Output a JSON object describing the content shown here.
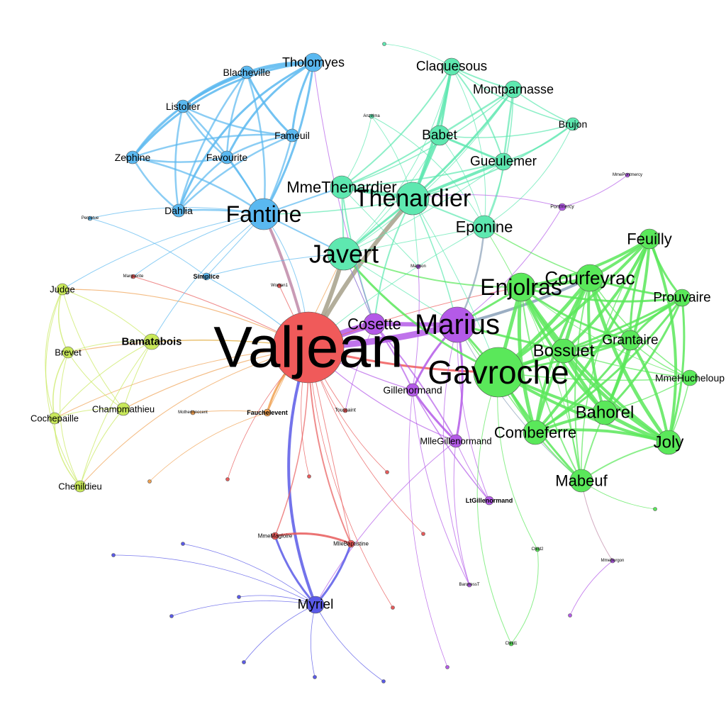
{
  "colors": {
    "valjean": "#f05a5a",
    "thenardier": "#5ee8b0",
    "fantine": "#5ab8f0",
    "marius": "#b45ae8",
    "gavroche": "#5ae85a",
    "myriel": "#5a5ae8",
    "courtroom": "#c8e85a",
    "fauchelevent": "#f0a050",
    "minor_red": "#e85a5a"
  },
  "nodes": [
    {
      "id": "valjean",
      "label": "Valjean",
      "group": "valjean"
    },
    {
      "id": "gavroche",
      "label": "Gavroche",
      "group": "gavroche"
    },
    {
      "id": "marius",
      "label": "Marius",
      "group": "marius"
    },
    {
      "id": "javert",
      "label": "Javert",
      "group": "thenardier"
    },
    {
      "id": "thenardier",
      "label": "Thenardier",
      "group": "thenardier"
    },
    {
      "id": "fantine",
      "label": "Fantine",
      "group": "fantine"
    },
    {
      "id": "enjolras",
      "label": "Enjolras",
      "group": "gavroche"
    },
    {
      "id": "courfeyrac",
      "label": "Courfeyrac",
      "group": "gavroche"
    },
    {
      "id": "bossuet",
      "label": "Bossuet",
      "group": "gavroche"
    },
    {
      "id": "bahorel",
      "label": "Bahorel",
      "group": "gavroche"
    },
    {
      "id": "joly",
      "label": "Joly",
      "group": "gavroche"
    },
    {
      "id": "combeferre",
      "label": "Combeferre",
      "group": "gavroche"
    },
    {
      "id": "mabeuf",
      "label": "Mabeuf",
      "group": "gavroche"
    },
    {
      "id": "feuilly",
      "label": "Feuilly",
      "group": "gavroche"
    },
    {
      "id": "prouvaire",
      "label": "Prouvaire",
      "group": "gavroche"
    },
    {
      "id": "grantaire",
      "label": "Grantaire",
      "group": "gavroche"
    },
    {
      "id": "mmehucheloup",
      "label": "MmeHucheloup",
      "group": "gavroche"
    },
    {
      "id": "cosette",
      "label": "Cosette",
      "group": "marius"
    },
    {
      "id": "eponine",
      "label": "Eponine",
      "group": "thenardier"
    },
    {
      "id": "mmethenardier",
      "label": "MmeThenardier",
      "group": "thenardier"
    },
    {
      "id": "tholomyes",
      "label": "Tholomyes",
      "group": "fantine"
    },
    {
      "id": "claquesous",
      "label": "Claquesous",
      "group": "thenardier"
    },
    {
      "id": "montparnasse",
      "label": "Montparnasse",
      "group": "thenardier"
    },
    {
      "id": "babet",
      "label": "Babet",
      "group": "thenardier"
    },
    {
      "id": "gueulemer",
      "label": "Gueulemer",
      "group": "thenardier"
    },
    {
      "id": "brujon",
      "label": "Brujon",
      "group": "thenardier"
    },
    {
      "id": "blacheville",
      "label": "Blacheville",
      "group": "fantine"
    },
    {
      "id": "listolier",
      "label": "Listolier",
      "group": "fantine"
    },
    {
      "id": "fameuil",
      "label": "Fameuil",
      "group": "fantine"
    },
    {
      "id": "zephine",
      "label": "Zephine",
      "group": "fantine"
    },
    {
      "id": "favourite",
      "label": "Favourite",
      "group": "fantine"
    },
    {
      "id": "dahlia",
      "label": "Dahlia",
      "group": "fantine"
    },
    {
      "id": "myriel",
      "label": "Myriel",
      "group": "myriel"
    },
    {
      "id": "gillenormand",
      "label": "Gillenormand",
      "group": "marius"
    },
    {
      "id": "mllegillenormand",
      "label": "MlleGillenormand",
      "group": "marius"
    },
    {
      "id": "ltgillenormand",
      "label": "LtGillenormand",
      "group": "marius"
    },
    {
      "id": "bamatabois",
      "label": "Bamatabois",
      "group": "courtroom"
    },
    {
      "id": "judge",
      "label": "Judge",
      "group": "courtroom"
    },
    {
      "id": "brevet",
      "label": "Brevet",
      "group": "courtroom"
    },
    {
      "id": "champmathieu",
      "label": "Champmathieu",
      "group": "courtroom"
    },
    {
      "id": "cochepaille",
      "label": "Cochepaille",
      "group": "courtroom"
    },
    {
      "id": "chenildieu",
      "label": "Chenildieu",
      "group": "courtroom"
    },
    {
      "id": "simplice",
      "label": "Simplice",
      "group": "fantine"
    },
    {
      "id": "fauchelevent",
      "label": "Fauchelevent",
      "group": "fauchelevent"
    },
    {
      "id": "mmemagloire",
      "label": "MmeMagloire",
      "group": "minor_red"
    },
    {
      "id": "mllebaptistine",
      "label": "MlleBaptistine",
      "group": "minor_red"
    },
    {
      "id": "toussaint",
      "label": "Toussaint",
      "group": "minor_red"
    },
    {
      "id": "woman1",
      "label": "Woman1",
      "group": "minor_red"
    },
    {
      "id": "marguerite",
      "label": "Marguerite",
      "group": "minor_red"
    },
    {
      "id": "motherinnocent",
      "label": "MotherInnocent",
      "group": "fauchelevent"
    },
    {
      "id": "anzelma",
      "label": "Anzelma",
      "group": "thenardier"
    },
    {
      "id": "magnon",
      "label": "Magnon",
      "group": "marius"
    },
    {
      "id": "pontmercy",
      "label": "Pontmercy",
      "group": "marius"
    },
    {
      "id": "mmepontmercy",
      "label": "MmePontmercy",
      "group": "marius"
    },
    {
      "id": "perpetue",
      "label": "Perpetue",
      "group": "fantine"
    },
    {
      "id": "child2",
      "label": "Child2",
      "group": "gavroche"
    },
    {
      "id": "child1",
      "label": "Child1",
      "group": "gavroche"
    },
    {
      "id": "baronesst",
      "label": "BaronessT",
      "group": "marius"
    },
    {
      "id": "mmeburgon",
      "label": "MmeBurgon",
      "group": "marius"
    }
  ]
}
